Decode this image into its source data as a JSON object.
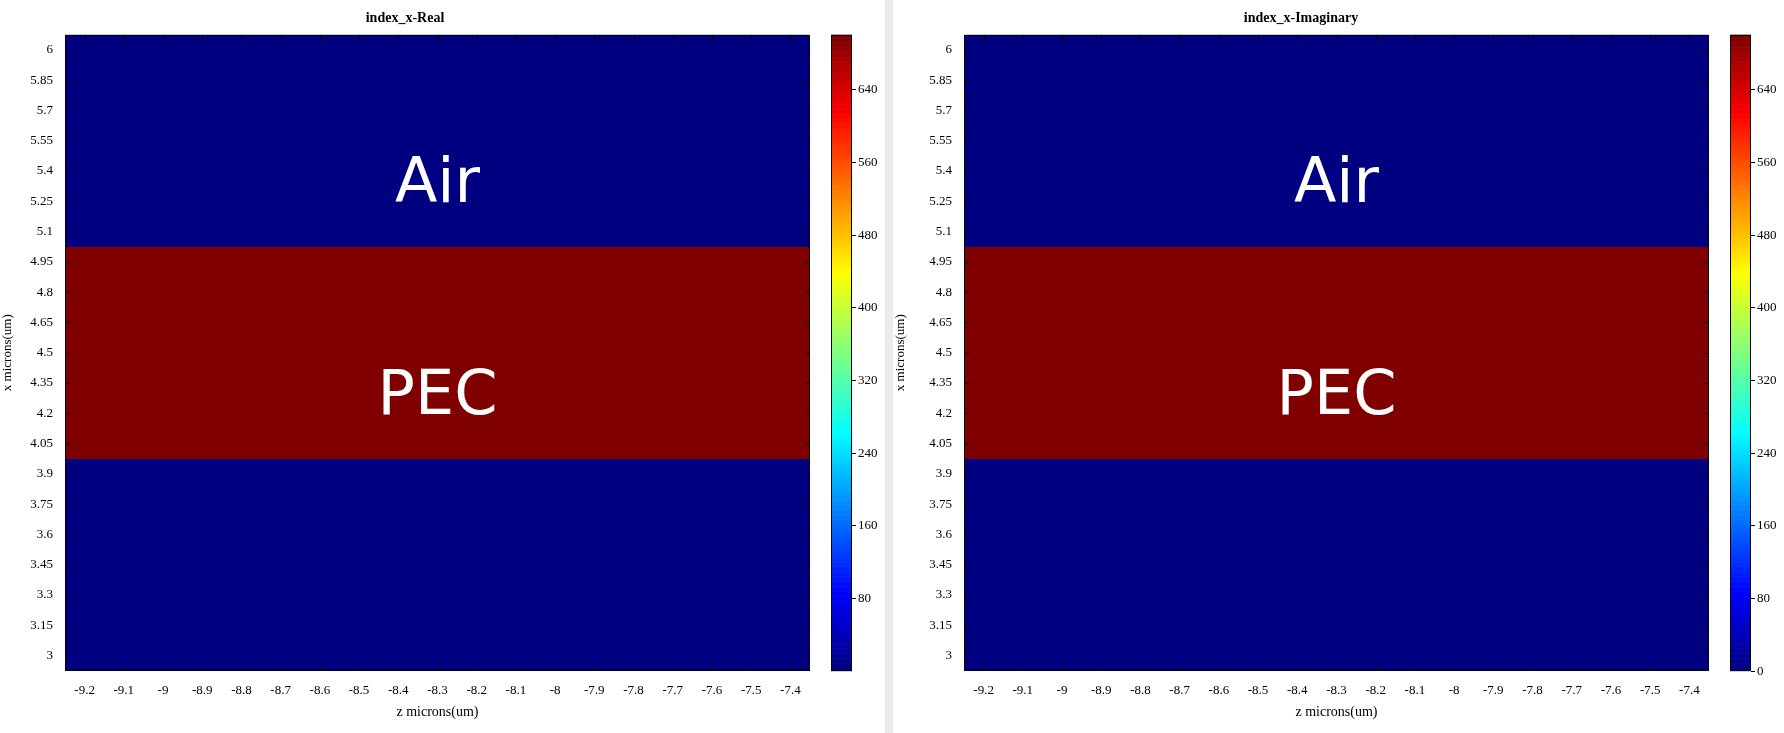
{
  "chart_data": [
    {
      "type": "heatmap",
      "title": "index_x-Real",
      "xlabel": "z microns(um)",
      "ylabel": "x microns(um)",
      "categories": [
        "-9.2",
        "-9.1",
        "-9",
        "-8.9",
        "-8.8",
        "-8.7",
        "-8.6",
        "-8.5",
        "-8.4",
        "-8.3",
        "-8.2",
        "-8.1",
        "-8",
        "-7.9",
        "-7.8",
        "-7.7",
        "-7.6",
        "-7.5",
        "-7.4"
      ],
      "y_categories": [
        "6",
        "5.85",
        "5.7",
        "5.55",
        "5.4",
        "5.25",
        "5.1",
        "4.95",
        "4.8",
        "4.65",
        "4.5",
        "4.35",
        "4.2",
        "4.05",
        "3.9",
        "3.75",
        "3.6",
        "3.45",
        "3.3",
        "3.15",
        "3"
      ],
      "cells": [
        [
          0,
          0,
          0,
          0,
          0,
          0,
          0,
          0,
          0,
          0,
          0,
          0,
          0,
          0,
          0,
          0,
          0,
          0,
          0
        ],
        [
          0,
          0,
          0,
          0,
          0,
          0,
          0,
          0,
          0,
          0,
          0,
          0,
          0,
          0,
          0,
          0,
          0,
          0,
          0
        ],
        [
          0,
          0,
          0,
          0,
          0,
          0,
          0,
          0,
          0,
          0,
          0,
          0,
          0,
          0,
          0,
          0,
          0,
          0,
          0
        ],
        [
          0,
          0,
          0,
          0,
          0,
          0,
          0,
          0,
          0,
          0,
          0,
          0,
          0,
          0,
          0,
          0,
          0,
          0,
          0
        ],
        [
          0,
          0,
          0,
          0,
          0,
          0,
          0,
          0,
          0,
          0,
          0,
          0,
          0,
          0,
          0,
          0,
          0,
          0,
          0
        ],
        [
          0,
          0,
          0,
          0,
          0,
          0,
          0,
          0,
          0,
          0,
          0,
          0,
          0,
          0,
          0,
          0,
          0,
          0,
          0
        ],
        [
          0,
          0,
          0,
          0,
          0,
          0,
          0,
          0,
          0,
          0,
          0,
          0,
          0,
          0,
          0,
          0,
          0,
          0,
          0
        ],
        [
          700,
          700,
          700,
          700,
          700,
          700,
          700,
          700,
          700,
          700,
          700,
          700,
          700,
          700,
          700,
          700,
          700,
          700,
          700
        ],
        [
          700,
          700,
          700,
          700,
          700,
          700,
          700,
          700,
          700,
          700,
          700,
          700,
          700,
          700,
          700,
          700,
          700,
          700,
          700
        ],
        [
          700,
          700,
          700,
          700,
          700,
          700,
          700,
          700,
          700,
          700,
          700,
          700,
          700,
          700,
          700,
          700,
          700,
          700,
          700
        ],
        [
          700,
          700,
          700,
          700,
          700,
          700,
          700,
          700,
          700,
          700,
          700,
          700,
          700,
          700,
          700,
          700,
          700,
          700,
          700
        ],
        [
          700,
          700,
          700,
          700,
          700,
          700,
          700,
          700,
          700,
          700,
          700,
          700,
          700,
          700,
          700,
          700,
          700,
          700,
          700
        ],
        [
          700,
          700,
          700,
          700,
          700,
          700,
          700,
          700,
          700,
          700,
          700,
          700,
          700,
          700,
          700,
          700,
          700,
          700,
          700
        ],
        [
          700,
          700,
          700,
          700,
          700,
          700,
          700,
          700,
          700,
          700,
          700,
          700,
          700,
          700,
          700,
          700,
          700,
          700,
          700
        ],
        [
          0,
          0,
          0,
          0,
          0,
          0,
          0,
          0,
          0,
          0,
          0,
          0,
          0,
          0,
          0,
          0,
          0,
          0,
          0
        ],
        [
          0,
          0,
          0,
          0,
          0,
          0,
          0,
          0,
          0,
          0,
          0,
          0,
          0,
          0,
          0,
          0,
          0,
          0,
          0
        ],
        [
          0,
          0,
          0,
          0,
          0,
          0,
          0,
          0,
          0,
          0,
          0,
          0,
          0,
          0,
          0,
          0,
          0,
          0,
          0
        ],
        [
          0,
          0,
          0,
          0,
          0,
          0,
          0,
          0,
          0,
          0,
          0,
          0,
          0,
          0,
          0,
          0,
          0,
          0,
          0
        ],
        [
          0,
          0,
          0,
          0,
          0,
          0,
          0,
          0,
          0,
          0,
          0,
          0,
          0,
          0,
          0,
          0,
          0,
          0,
          0
        ],
        [
          0,
          0,
          0,
          0,
          0,
          0,
          0,
          0,
          0,
          0,
          0,
          0,
          0,
          0,
          0,
          0,
          0,
          0,
          0
        ],
        [
          0,
          0,
          0,
          0,
          0,
          0,
          0,
          0,
          0,
          0,
          0,
          0,
          0,
          0,
          0,
          0,
          0,
          0,
          0
        ]
      ],
      "clim": [
        0,
        700
      ],
      "cticks": [
        80,
        160,
        240,
        320,
        400,
        480,
        560,
        640
      ],
      "annotations": [
        "Air",
        "PEC"
      ]
    },
    {
      "type": "heatmap",
      "title": "index_x-Imaginary",
      "xlabel": "z microns(um)",
      "ylabel": "x microns(um)",
      "categories": [
        "-9.2",
        "-9.1",
        "-9",
        "-8.9",
        "-8.8",
        "-8.7",
        "-8.6",
        "-8.5",
        "-8.4",
        "-8.3",
        "-8.2",
        "-8.1",
        "-8",
        "-7.9",
        "-7.8",
        "-7.7",
        "-7.6",
        "-7.5",
        "-7.4"
      ],
      "y_categories": [
        "6",
        "5.85",
        "5.7",
        "5.55",
        "5.4",
        "5.25",
        "5.1",
        "4.95",
        "4.8",
        "4.65",
        "4.5",
        "4.35",
        "4.2",
        "4.05",
        "3.9",
        "3.75",
        "3.6",
        "3.45",
        "3.3",
        "3.15",
        "3"
      ],
      "cells": [
        [
          0,
          0,
          0,
          0,
          0,
          0,
          0,
          0,
          0,
          0,
          0,
          0,
          0,
          0,
          0,
          0,
          0,
          0,
          0
        ],
        [
          0,
          0,
          0,
          0,
          0,
          0,
          0,
          0,
          0,
          0,
          0,
          0,
          0,
          0,
          0,
          0,
          0,
          0,
          0
        ],
        [
          0,
          0,
          0,
          0,
          0,
          0,
          0,
          0,
          0,
          0,
          0,
          0,
          0,
          0,
          0,
          0,
          0,
          0,
          0
        ],
        [
          0,
          0,
          0,
          0,
          0,
          0,
          0,
          0,
          0,
          0,
          0,
          0,
          0,
          0,
          0,
          0,
          0,
          0,
          0
        ],
        [
          0,
          0,
          0,
          0,
          0,
          0,
          0,
          0,
          0,
          0,
          0,
          0,
          0,
          0,
          0,
          0,
          0,
          0,
          0
        ],
        [
          0,
          0,
          0,
          0,
          0,
          0,
          0,
          0,
          0,
          0,
          0,
          0,
          0,
          0,
          0,
          0,
          0,
          0,
          0
        ],
        [
          0,
          0,
          0,
          0,
          0,
          0,
          0,
          0,
          0,
          0,
          0,
          0,
          0,
          0,
          0,
          0,
          0,
          0,
          0
        ],
        [
          700,
          700,
          700,
          700,
          700,
          700,
          700,
          700,
          700,
          700,
          700,
          700,
          700,
          700,
          700,
          700,
          700,
          700,
          700
        ],
        [
          700,
          700,
          700,
          700,
          700,
          700,
          700,
          700,
          700,
          700,
          700,
          700,
          700,
          700,
          700,
          700,
          700,
          700,
          700
        ],
        [
          700,
          700,
          700,
          700,
          700,
          700,
          700,
          700,
          700,
          700,
          700,
          700,
          700,
          700,
          700,
          700,
          700,
          700,
          700
        ],
        [
          700,
          700,
          700,
          700,
          700,
          700,
          700,
          700,
          700,
          700,
          700,
          700,
          700,
          700,
          700,
          700,
          700,
          700,
          700
        ],
        [
          700,
          700,
          700,
          700,
          700,
          700,
          700,
          700,
          700,
          700,
          700,
          700,
          700,
          700,
          700,
          700,
          700,
          700,
          700
        ],
        [
          700,
          700,
          700,
          700,
          700,
          700,
          700,
          700,
          700,
          700,
          700,
          700,
          700,
          700,
          700,
          700,
          700,
          700,
          700
        ],
        [
          700,
          700,
          700,
          700,
          700,
          700,
          700,
          700,
          700,
          700,
          700,
          700,
          700,
          700,
          700,
          700,
          700,
          700,
          700
        ],
        [
          0,
          0,
          0,
          0,
          0,
          0,
          0,
          0,
          0,
          0,
          0,
          0,
          0,
          0,
          0,
          0,
          0,
          0,
          0
        ],
        [
          0,
          0,
          0,
          0,
          0,
          0,
          0,
          0,
          0,
          0,
          0,
          0,
          0,
          0,
          0,
          0,
          0,
          0,
          0
        ],
        [
          0,
          0,
          0,
          0,
          0,
          0,
          0,
          0,
          0,
          0,
          0,
          0,
          0,
          0,
          0,
          0,
          0,
          0,
          0
        ],
        [
          0,
          0,
          0,
          0,
          0,
          0,
          0,
          0,
          0,
          0,
          0,
          0,
          0,
          0,
          0,
          0,
          0,
          0,
          0
        ],
        [
          0,
          0,
          0,
          0,
          0,
          0,
          0,
          0,
          0,
          0,
          0,
          0,
          0,
          0,
          0,
          0,
          0,
          0,
          0
        ],
        [
          0,
          0,
          0,
          0,
          0,
          0,
          0,
          0,
          0,
          0,
          0,
          0,
          0,
          0,
          0,
          0,
          0,
          0,
          0
        ],
        [
          0,
          0,
          0,
          0,
          0,
          0,
          0,
          0,
          0,
          0,
          0,
          0,
          0,
          0,
          0,
          0,
          0,
          0,
          0
        ]
      ],
      "clim": [
        0,
        700
      ],
      "cticks": [
        0,
        80,
        160,
        240,
        320,
        400,
        480,
        560,
        640
      ],
      "annotations": [
        "Air",
        "PEC"
      ]
    }
  ]
}
